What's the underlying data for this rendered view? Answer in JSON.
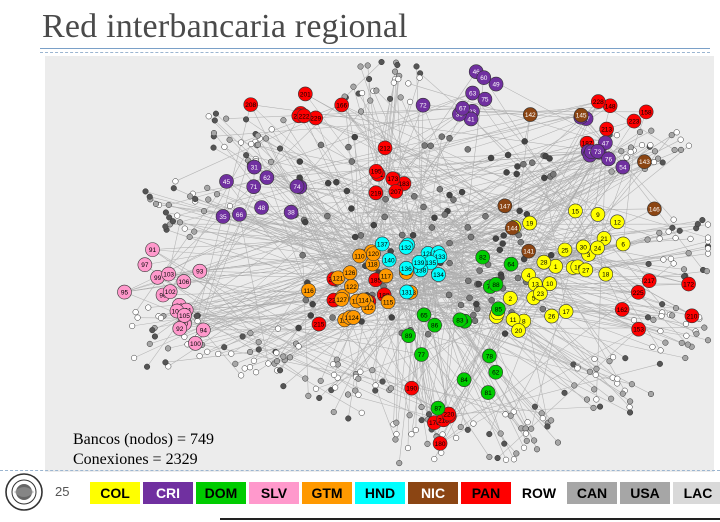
{
  "slide": {
    "title": "Red interbancaria regional",
    "page_number": "25",
    "stats": {
      "banks": "Bancos (nodos) = 749",
      "connections": "Conexiones = 2329"
    }
  },
  "legend": [
    {
      "label": "COL",
      "bg": "#ffff00",
      "fg": "#000000"
    },
    {
      "label": "CRI",
      "bg": "#7030a0",
      "fg": "#ffffff"
    },
    {
      "label": "DOM",
      "bg": "#00cc00",
      "fg": "#000000"
    },
    {
      "label": "SLV",
      "bg": "#ff99cc",
      "fg": "#000000"
    },
    {
      "label": "GTM",
      "bg": "#ff9900",
      "fg": "#000000"
    },
    {
      "label": "HND",
      "bg": "#00ffff",
      "fg": "#000000"
    },
    {
      "label": "NIC",
      "bg": "#8b4513",
      "fg": "#ffffff"
    },
    {
      "label": "PAN",
      "bg": "#ff0000",
      "fg": "#000000"
    },
    {
      "label": "ROW",
      "bg": "#ffffff",
      "fg": "#000000"
    },
    {
      "label": "CAN",
      "bg": "#a6a6a6",
      "fg": "#000000"
    },
    {
      "label": "USA",
      "bg": "#a6a6a6",
      "fg": "#000000"
    },
    {
      "label": "LAC",
      "bg": "#d9d9d9",
      "fg": "#000000"
    }
  ],
  "network": {
    "groups": [
      {
        "country": "PAN",
        "color": "#ff0000",
        "labels": [
          "183",
          "201",
          "187",
          "188",
          "172",
          "176",
          "173",
          "174",
          "158",
          "185",
          "153",
          "190",
          "191",
          "166",
          "148",
          "163",
          "162",
          "180",
          "195",
          "229",
          "228",
          "227",
          "210",
          "211",
          "212",
          "214",
          "213",
          "215",
          "217",
          "218",
          "219",
          "222",
          "223",
          "224",
          "225",
          "220",
          "207",
          "208"
        ]
      },
      {
        "country": "CRI",
        "color": "#7030a0",
        "labels": [
          "31",
          "33",
          "34",
          "35",
          "41",
          "37",
          "38",
          "39",
          "40",
          "45",
          "46",
          "47",
          "48",
          "49",
          "54",
          "55",
          "60",
          "61",
          "62",
          "63",
          "65",
          "66",
          "67",
          "70",
          "71",
          "72",
          "73",
          "74",
          "75",
          "76"
        ]
      },
      {
        "country": "COL",
        "color": "#ffff00",
        "labels": [
          "1",
          "2",
          "3",
          "4",
          "5",
          "6",
          "7",
          "8",
          "9",
          "10",
          "11",
          "12",
          "13",
          "14",
          "15",
          "16",
          "17",
          "18",
          "19",
          "20",
          "21",
          "22",
          "23",
          "24",
          "25",
          "26",
          "27",
          "28",
          "29",
          "30"
        ]
      },
      {
        "country": "DOM",
        "color": "#00cc00",
        "labels": [
          "77",
          "78",
          "79",
          "80",
          "81",
          "82",
          "83",
          "84",
          "85",
          "86",
          "87",
          "88",
          "89",
          "62",
          "64",
          "65"
        ]
      },
      {
        "country": "SLV",
        "color": "#ff99cc",
        "labels": [
          "90",
          "91",
          "92",
          "93",
          "94",
          "95",
          "96",
          "97",
          "98",
          "99",
          "100",
          "101",
          "102",
          "103",
          "104",
          "105",
          "106"
        ]
      },
      {
        "country": "GTM",
        "color": "#ff9900",
        "labels": [
          "107",
          "108",
          "109",
          "110",
          "111",
          "112",
          "113",
          "114",
          "115",
          "116",
          "117",
          "118",
          "119",
          "120",
          "121",
          "122",
          "123",
          "124",
          "125",
          "126",
          "127"
        ]
      },
      {
        "country": "HND",
        "color": "#00ffff",
        "labels": [
          "128",
          "129",
          "130",
          "131",
          "132",
          "133",
          "134",
          "135",
          "136",
          "137",
          "138",
          "139",
          "140"
        ]
      },
      {
        "country": "NIC",
        "color": "#8b4513",
        "labels": [
          "141",
          "142",
          "143",
          "144",
          "145",
          "146",
          "147"
        ]
      }
    ]
  }
}
